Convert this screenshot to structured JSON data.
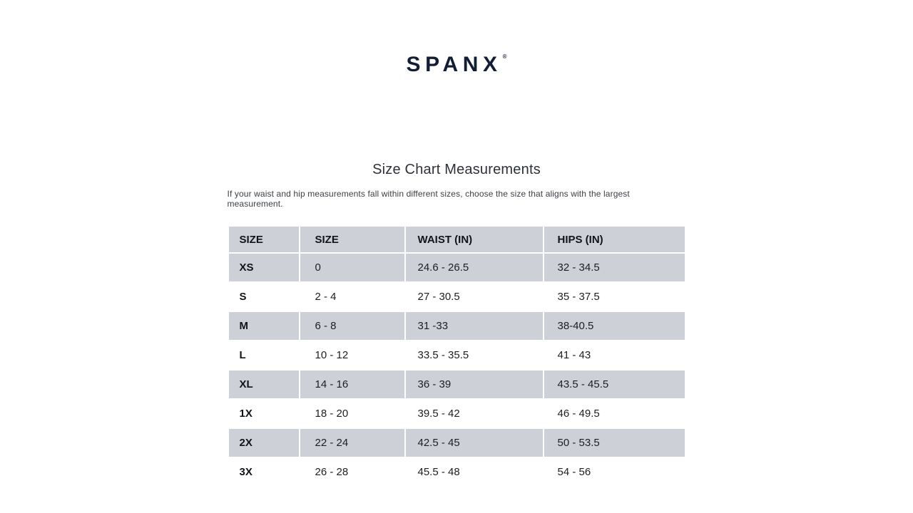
{
  "brand": {
    "logo_text": "SPANX",
    "trademark_symbol": "®"
  },
  "page": {
    "title": "Size Chart Measurements",
    "subtitle": "If your waist and hip measurements fall within different sizes, choose the size that aligns with the largest measurement."
  },
  "table": {
    "headers": [
      "SIZE",
      "SIZE",
      "WAIST (IN)",
      "HIPS (IN)"
    ],
    "rows": [
      {
        "size_label": "XS",
        "size_range": "0",
        "waist": "24.6 - 26.5",
        "hips": "32 - 34.5"
      },
      {
        "size_label": "S",
        "size_range": "2 - 4",
        "waist": "27 - 30.5",
        "hips": "35 - 37.5"
      },
      {
        "size_label": "M",
        "size_range": "6 - 8",
        "waist": "31 -33",
        "hips": "38-40.5"
      },
      {
        "size_label": "L",
        "size_range": "10 - 12",
        "waist": "33.5 - 35.5",
        "hips": "41 - 43"
      },
      {
        "size_label": "XL",
        "size_range": "14 - 16",
        "waist": "36 - 39",
        "hips": "43.5 - 45.5"
      },
      {
        "size_label": "1X",
        "size_range": "18 - 20",
        "waist": "39.5 - 42",
        "hips": "46 - 49.5"
      },
      {
        "size_label": "2X",
        "size_range": "22 - 24",
        "waist": "42.5 - 45",
        "hips": "50 - 53.5"
      },
      {
        "size_label": "3X",
        "size_range": "26 - 28",
        "waist": "45.5 - 48",
        "hips": "54 - 56"
      }
    ]
  },
  "colors": {
    "row_shade": "#cdd0d6",
    "logo_color": "#131e35",
    "title_color": "#2d3138",
    "subtitle_color": "#3b4046",
    "cell_text": "#1c1e21",
    "label_text": "#111418"
  }
}
